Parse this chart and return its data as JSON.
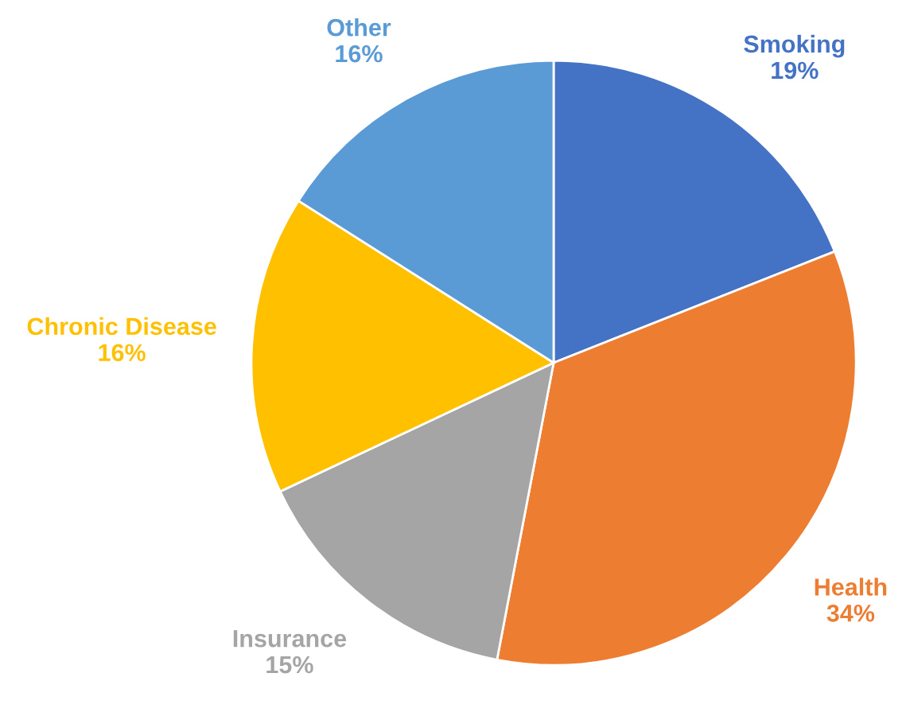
{
  "chart_data": {
    "type": "pie",
    "categories": [
      "Smoking",
      "Health",
      "Insurance",
      "Chronic Disease",
      "Other"
    ],
    "values": [
      19,
      34,
      15,
      16,
      16
    ],
    "colors": [
      "#4472c4",
      "#ed7d31",
      "#a5a5a5",
      "#ffc000",
      "#5b9bd5"
    ],
    "value_labels": [
      "19%",
      "34%",
      "15%",
      "16%",
      "16%"
    ],
    "legend": false
  }
}
